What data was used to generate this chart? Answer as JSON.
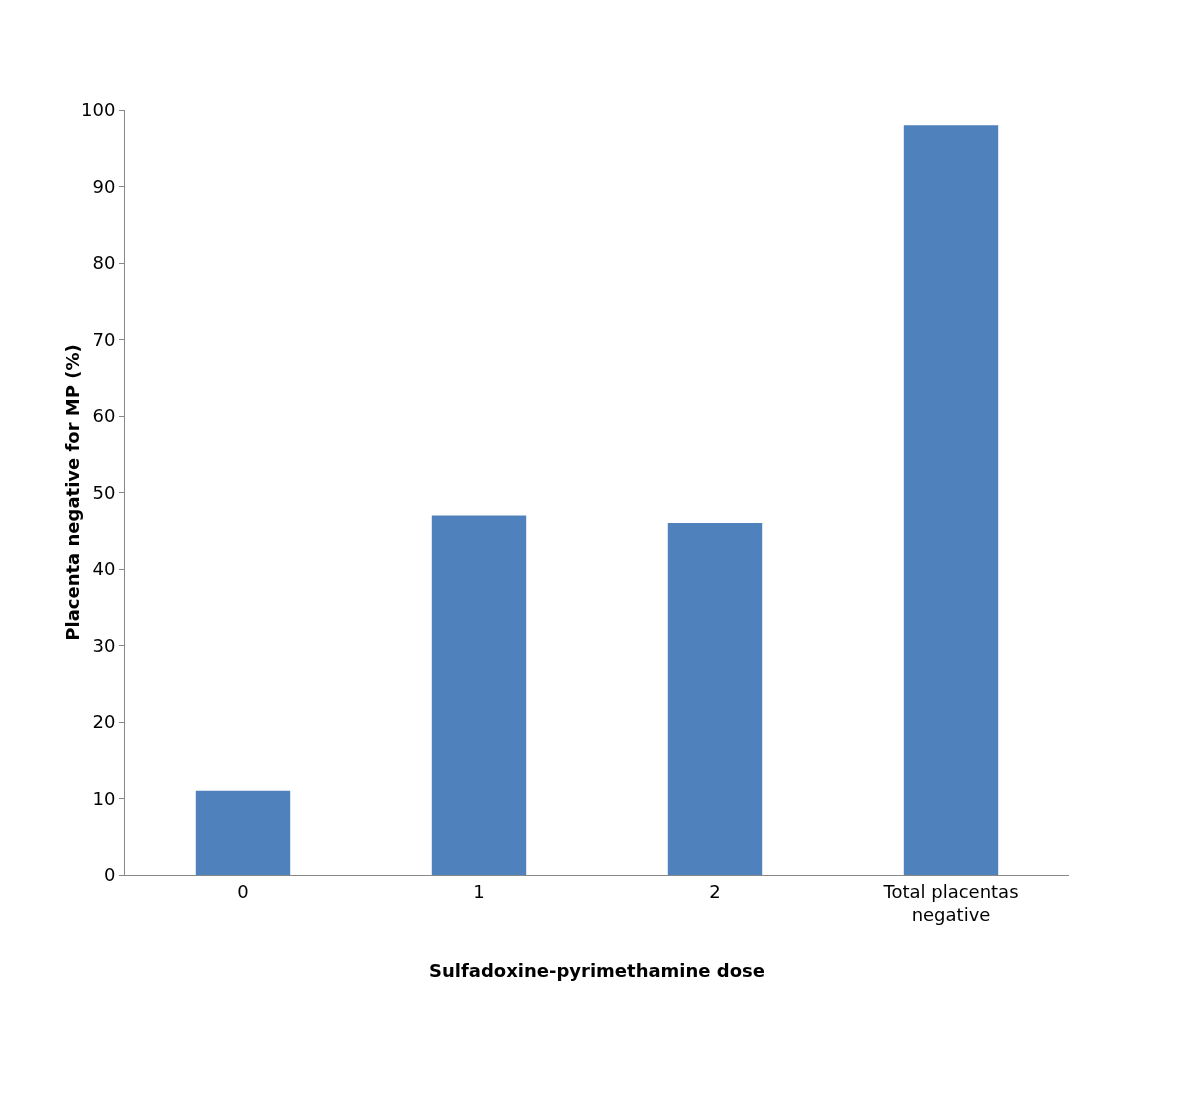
{
  "chart_data": {
    "type": "bar",
    "xlabel": "Sulfadoxine-pyrimethamine dose",
    "ylabel": "Placenta negative for MP (%)",
    "categories": [
      "0",
      "1",
      "2",
      "Total placentas negative"
    ],
    "values": [
      11,
      47,
      46,
      98
    ],
    "color": "#4f81bd",
    "ylim": [
      0,
      100
    ],
    "yticks": [
      0,
      10,
      20,
      30,
      40,
      50,
      60,
      70,
      80,
      90,
      100
    ],
    "grid": false
  }
}
